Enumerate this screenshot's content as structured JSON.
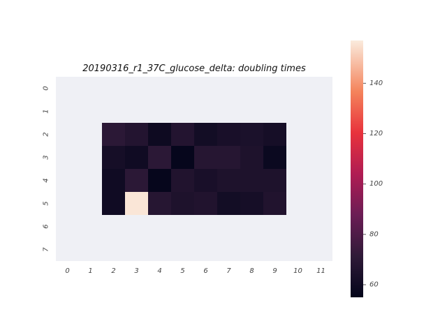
{
  "chart_data": {
    "type": "heatmap",
    "title": "20190316_r1_37C_glucose_delta: doubling times",
    "xlabel": "",
    "ylabel": "",
    "x_categories": [
      "0",
      "1",
      "2",
      "3",
      "4",
      "5",
      "6",
      "7",
      "8",
      "9",
      "10",
      "11"
    ],
    "y_categories": [
      "0",
      "1",
      "2",
      "3",
      "4",
      "5",
      "6",
      "7"
    ],
    "values": [
      [
        null,
        null,
        null,
        null,
        null,
        null,
        null,
        null,
        null,
        null,
        null,
        null
      ],
      [
        null,
        null,
        null,
        null,
        null,
        null,
        null,
        null,
        null,
        null,
        null,
        null
      ],
      [
        null,
        null,
        70,
        67,
        59,
        67,
        61,
        63,
        64,
        62,
        null,
        null
      ],
      [
        null,
        null,
        62,
        60,
        70,
        56,
        68,
        68,
        65,
        58,
        null,
        null
      ],
      [
        null,
        null,
        60,
        70,
        56,
        66,
        63,
        65,
        65,
        65,
        null,
        null
      ],
      [
        null,
        null,
        60,
        156,
        68,
        65,
        66,
        61,
        62,
        66,
        null,
        null
      ],
      [
        null,
        null,
        null,
        null,
        null,
        null,
        null,
        null,
        null,
        null,
        null,
        null
      ],
      [
        null,
        null,
        null,
        null,
        null,
        null,
        null,
        null,
        null,
        null,
        null,
        null
      ]
    ],
    "colorbar": {
      "range": [
        55,
        157
      ],
      "ticks": [
        60,
        80,
        100,
        120,
        140
      ],
      "colormap": "rocket"
    },
    "background_color": "#eff0f5"
  }
}
